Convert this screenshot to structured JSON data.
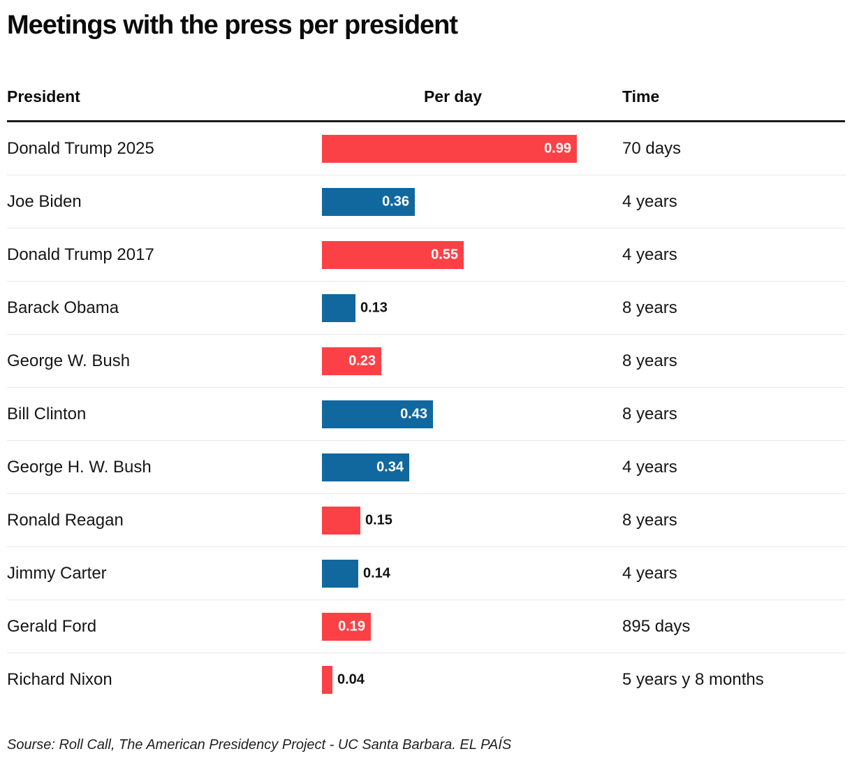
{
  "title": "Meetings with the press per president",
  "columns": {
    "president": "President",
    "per_day": "Per day",
    "time": "Time"
  },
  "colors": {
    "red": "#FC4146",
    "blue": "#11689E",
    "divider": "#E9E9E9",
    "header_rule": "#1A1A1A"
  },
  "rows": [
    {
      "president": "Donald Trump 2025",
      "value": 0.99,
      "value_label": "0.99",
      "color": "red",
      "time": "70 days",
      "label_inside": true
    },
    {
      "president": "Joe Biden",
      "value": 0.36,
      "value_label": "0.36",
      "color": "blue",
      "time": "4 years",
      "label_inside": true
    },
    {
      "president": "Donald Trump 2017",
      "value": 0.55,
      "value_label": "0.55",
      "color": "red",
      "time": "4 years",
      "label_inside": true
    },
    {
      "president": "Barack Obama",
      "value": 0.13,
      "value_label": "0.13",
      "color": "blue",
      "time": "8 years",
      "label_inside": false
    },
    {
      "president": "George W. Bush",
      "value": 0.23,
      "value_label": "0.23",
      "color": "red",
      "time": "8 years",
      "label_inside": true
    },
    {
      "president": "Bill Clinton",
      "value": 0.43,
      "value_label": "0.43",
      "color": "blue",
      "time": "8 years",
      "label_inside": true
    },
    {
      "president": "George H. W. Bush",
      "value": 0.34,
      "value_label": "0.34",
      "color": "blue",
      "time": "4 years",
      "label_inside": true
    },
    {
      "president": "Ronald Reagan",
      "value": 0.15,
      "value_label": "0.15",
      "color": "red",
      "time": "8 years",
      "label_inside": false
    },
    {
      "president": "Jimmy Carter",
      "value": 0.14,
      "value_label": "0.14",
      "color": "blue",
      "time": "4 years",
      "label_inside": false
    },
    {
      "president": "Gerald Ford",
      "value": 0.19,
      "value_label": "0.19",
      "color": "red",
      "time": "895 days",
      "label_inside": true
    },
    {
      "president": "Richard Nixon",
      "value": 0.04,
      "value_label": "0.04",
      "color": "red",
      "time": "5 years y 8 months",
      "label_inside": false
    }
  ],
  "source": "Sourse: Roll Call, The American Presidency Project - UC Santa Barbara. EL PAÍS",
  "chart_data": {
    "type": "bar",
    "orientation": "horizontal",
    "title": "Meetings with the press per president",
    "categories": [
      "Donald Trump 2025",
      "Joe Biden",
      "Donald Trump 2017",
      "Barack Obama",
      "George W. Bush",
      "Bill Clinton",
      "George H. W. Bush",
      "Ronald Reagan",
      "Jimmy Carter",
      "Gerald Ford",
      "Richard Nixon"
    ],
    "values": [
      0.99,
      0.36,
      0.55,
      0.13,
      0.23,
      0.43,
      0.34,
      0.15,
      0.14,
      0.19,
      0.04
    ],
    "bar_colors": [
      "#FC4146",
      "#11689E",
      "#FC4146",
      "#11689E",
      "#FC4146",
      "#11689E",
      "#11689E",
      "#FC4146",
      "#11689E",
      "#FC4146",
      "#FC4146"
    ],
    "time_column": [
      "70 days",
      "4 years",
      "4 years",
      "8 years",
      "8 years",
      "8 years",
      "4 years",
      "8 years",
      "4 years",
      "895 days",
      "5 years y 8 months"
    ],
    "xlabel": "Per day",
    "ylabel": "President",
    "xlim": [
      0,
      1.0
    ],
    "grid": false,
    "legend": false,
    "value_labels_shown": true,
    "source": "Sourse: Roll Call, The American Presidency Project - UC Santa Barbara. EL PAÍS"
  }
}
